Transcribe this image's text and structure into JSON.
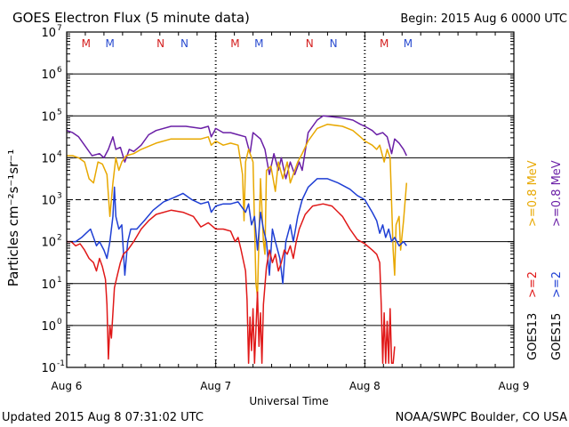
{
  "chart_data": {
    "type": "line",
    "title": "GOES Electron Flux (5 minute data)",
    "begin_label": "Begin: 2015 Aug 6 0000 UTC",
    "xlabel": "Universal Time",
    "ylabel": "Particles cm⁻²s⁻¹sr⁻¹",
    "yscale": "log",
    "ylim_log10": [
      -1,
      7
    ],
    "y_ticks": [
      {
        "exp": -1,
        "label": "10",
        "sup": "-1"
      },
      {
        "exp": 0,
        "label": "10",
        "sup": "0"
      },
      {
        "exp": 1,
        "label": "10",
        "sup": "1"
      },
      {
        "exp": 2,
        "label": "10",
        "sup": "2"
      },
      {
        "exp": 3,
        "label": "10",
        "sup": "3"
      },
      {
        "exp": 4,
        "label": "10",
        "sup": "4"
      },
      {
        "exp": 5,
        "label": "10",
        "sup": "5"
      },
      {
        "exp": 6,
        "label": "10",
        "sup": "6"
      },
      {
        "exp": 7,
        "label": "10",
        "sup": "7"
      }
    ],
    "xlim_days": [
      0,
      3
    ],
    "x_ticks": [
      {
        "day": 0,
        "label": "Aug 6"
      },
      {
        "day": 1,
        "label": "Aug 7"
      },
      {
        "day": 2,
        "label": "Aug 8"
      },
      {
        "day": 3,
        "label": "Aug 9"
      }
    ],
    "solid_gridlines": [
      0,
      1,
      2,
      4,
      5,
      6
    ],
    "dashed_gridline": 3,
    "markers": [
      {
        "day": 0.13,
        "label": "M",
        "color": "#d42020"
      },
      {
        "day": 0.29,
        "label": "M",
        "color": "#2a4cd0"
      },
      {
        "day": 0.63,
        "label": "N",
        "color": "#d42020"
      },
      {
        "day": 0.79,
        "label": "N",
        "color": "#2a4cd0"
      },
      {
        "day": 1.13,
        "label": "M",
        "color": "#d42020"
      },
      {
        "day": 1.29,
        "label": "M",
        "color": "#2a4cd0"
      },
      {
        "day": 1.63,
        "label": "N",
        "color": "#d42020"
      },
      {
        "day": 1.79,
        "label": "N",
        "color": "#2a4cd0"
      },
      {
        "day": 2.13,
        "label": "M",
        "color": "#d42020"
      },
      {
        "day": 2.29,
        "label": "M",
        "color": "#2a4cd0"
      }
    ],
    "series": [
      {
        "name": ">=0.8 MeV GOES15",
        "color": "#6a1fa6",
        "points": [
          [
            0,
            4.65
          ],
          [
            0.04,
            4.6
          ],
          [
            0.08,
            4.5
          ],
          [
            0.12,
            4.3
          ],
          [
            0.17,
            4.05
          ],
          [
            0.22,
            4.1
          ],
          [
            0.25,
            4.0
          ],
          [
            0.28,
            4.2
          ],
          [
            0.31,
            4.5
          ],
          [
            0.33,
            4.2
          ],
          [
            0.36,
            4.25
          ],
          [
            0.39,
            3.9
          ],
          [
            0.42,
            4.2
          ],
          [
            0.45,
            4.15
          ],
          [
            0.5,
            4.3
          ],
          [
            0.55,
            4.55
          ],
          [
            0.6,
            4.65
          ],
          [
            0.7,
            4.75
          ],
          [
            0.8,
            4.75
          ],
          [
            0.9,
            4.7
          ],
          [
            0.95,
            4.75
          ],
          [
            0.97,
            4.5
          ],
          [
            1.0,
            4.7
          ],
          [
            1.05,
            4.6
          ],
          [
            1.1,
            4.6
          ],
          [
            1.15,
            4.55
          ],
          [
            1.2,
            4.5
          ],
          [
            1.23,
            4.1
          ],
          [
            1.25,
            4.6
          ],
          [
            1.3,
            4.45
          ],
          [
            1.33,
            4.2
          ],
          [
            1.36,
            3.6
          ],
          [
            1.39,
            4.1
          ],
          [
            1.42,
            3.7
          ],
          [
            1.44,
            4.0
          ],
          [
            1.47,
            3.5
          ],
          [
            1.5,
            3.9
          ],
          [
            1.53,
            3.6
          ],
          [
            1.56,
            3.9
          ],
          [
            1.58,
            3.7
          ],
          [
            1.62,
            4.6
          ],
          [
            1.68,
            4.9
          ],
          [
            1.72,
            5.0
          ],
          [
            1.78,
            4.98
          ],
          [
            1.85,
            4.95
          ],
          [
            1.92,
            4.9
          ],
          [
            1.97,
            4.8
          ],
          [
            2.0,
            4.75
          ],
          [
            2.05,
            4.65
          ],
          [
            2.08,
            4.55
          ],
          [
            2.12,
            4.6
          ],
          [
            2.15,
            4.5
          ],
          [
            2.18,
            4.1
          ],
          [
            2.2,
            4.45
          ],
          [
            2.23,
            4.35
          ],
          [
            2.26,
            4.2
          ],
          [
            2.28,
            4.05
          ]
        ]
      },
      {
        "name": ">=0.8 MeV GOES13",
        "color": "#e8a800",
        "points": [
          [
            0,
            4.05
          ],
          [
            0.04,
            4.05
          ],
          [
            0.08,
            4.0
          ],
          [
            0.12,
            3.9
          ],
          [
            0.15,
            3.5
          ],
          [
            0.18,
            3.4
          ],
          [
            0.21,
            3.9
          ],
          [
            0.24,
            3.85
          ],
          [
            0.27,
            3.6
          ],
          [
            0.29,
            2.6
          ],
          [
            0.31,
            3.4
          ],
          [
            0.33,
            4.0
          ],
          [
            0.35,
            3.7
          ],
          [
            0.37,
            3.9
          ],
          [
            0.4,
            4.05
          ],
          [
            0.45,
            4.1
          ],
          [
            0.5,
            4.2
          ],
          [
            0.6,
            4.35
          ],
          [
            0.7,
            4.45
          ],
          [
            0.8,
            4.45
          ],
          [
            0.9,
            4.45
          ],
          [
            0.95,
            4.5
          ],
          [
            0.97,
            4.3
          ],
          [
            1.0,
            4.4
          ],
          [
            1.05,
            4.3
          ],
          [
            1.1,
            4.35
          ],
          [
            1.15,
            4.3
          ],
          [
            1.18,
            3.6
          ],
          [
            1.19,
            2.5
          ],
          [
            1.2,
            3.9
          ],
          [
            1.22,
            4.2
          ],
          [
            1.25,
            3.9
          ],
          [
            1.27,
            1.0
          ],
          [
            1.28,
            0.7
          ],
          [
            1.3,
            3.5
          ],
          [
            1.32,
            2.0
          ],
          [
            1.33,
            1.7
          ],
          [
            1.34,
            3.7
          ],
          [
            1.37,
            3.8
          ],
          [
            1.4,
            3.2
          ],
          [
            1.42,
            3.9
          ],
          [
            1.45,
            3.5
          ],
          [
            1.48,
            3.9
          ],
          [
            1.5,
            3.4
          ],
          [
            1.53,
            3.7
          ],
          [
            1.55,
            3.9
          ],
          [
            1.58,
            4.1
          ],
          [
            1.62,
            4.4
          ],
          [
            1.68,
            4.7
          ],
          [
            1.75,
            4.8
          ],
          [
            1.85,
            4.75
          ],
          [
            1.92,
            4.65
          ],
          [
            1.97,
            4.5
          ],
          [
            2.0,
            4.4
          ],
          [
            2.05,
            4.3
          ],
          [
            2.08,
            4.2
          ],
          [
            2.1,
            4.3
          ],
          [
            2.13,
            3.9
          ],
          [
            2.15,
            4.2
          ],
          [
            2.17,
            4.0
          ],
          [
            2.19,
            1.8
          ],
          [
            2.2,
            1.2
          ],
          [
            2.21,
            2.4
          ],
          [
            2.23,
            2.6
          ],
          [
            2.24,
            1.8
          ],
          [
            2.26,
            2.5
          ],
          [
            2.28,
            3.4
          ]
        ]
      },
      {
        "name": ">=2 MeV GOES15",
        "color": "#1f3fd4",
        "points": [
          [
            0,
            2.0
          ],
          [
            0.03,
            2.0
          ],
          [
            0.06,
            2.0
          ],
          [
            0.1,
            2.1
          ],
          [
            0.13,
            2.2
          ],
          [
            0.16,
            2.3
          ],
          [
            0.18,
            2.1
          ],
          [
            0.2,
            1.9
          ],
          [
            0.22,
            2.0
          ],
          [
            0.25,
            1.8
          ],
          [
            0.27,
            1.6
          ],
          [
            0.29,
            2.0
          ],
          [
            0.31,
            2.6
          ],
          [
            0.32,
            3.3
          ],
          [
            0.33,
            2.6
          ],
          [
            0.35,
            2.3
          ],
          [
            0.37,
            2.4
          ],
          [
            0.39,
            1.2
          ],
          [
            0.41,
            2.0
          ],
          [
            0.43,
            2.3
          ],
          [
            0.47,
            2.3
          ],
          [
            0.52,
            2.5
          ],
          [
            0.58,
            2.75
          ],
          [
            0.65,
            2.95
          ],
          [
            0.72,
            3.05
          ],
          [
            0.78,
            3.15
          ],
          [
            0.84,
            3.0
          ],
          [
            0.9,
            2.9
          ],
          [
            0.95,
            2.95
          ],
          [
            0.97,
            2.7
          ],
          [
            1.0,
            2.85
          ],
          [
            1.05,
            2.9
          ],
          [
            1.1,
            2.9
          ],
          [
            1.15,
            2.95
          ],
          [
            1.2,
            2.7
          ],
          [
            1.22,
            2.9
          ],
          [
            1.24,
            2.4
          ],
          [
            1.26,
            2.6
          ],
          [
            1.28,
            1.8
          ],
          [
            1.3,
            2.7
          ],
          [
            1.32,
            2.3
          ],
          [
            1.34,
            2.0
          ],
          [
            1.36,
            1.2
          ],
          [
            1.38,
            2.3
          ],
          [
            1.4,
            2.0
          ],
          [
            1.43,
            1.6
          ],
          [
            1.45,
            1.0
          ],
          [
            1.47,
            2.0
          ],
          [
            1.5,
            2.4
          ],
          [
            1.52,
            2.0
          ],
          [
            1.55,
            2.6
          ],
          [
            1.58,
            3.0
          ],
          [
            1.62,
            3.3
          ],
          [
            1.68,
            3.5
          ],
          [
            1.75,
            3.5
          ],
          [
            1.82,
            3.4
          ],
          [
            1.9,
            3.25
          ],
          [
            1.95,
            3.1
          ],
          [
            2.0,
            3.0
          ],
          [
            2.05,
            2.7
          ],
          [
            2.08,
            2.5
          ],
          [
            2.1,
            2.2
          ],
          [
            2.12,
            2.4
          ],
          [
            2.14,
            2.1
          ],
          [
            2.16,
            2.3
          ],
          [
            2.18,
            2.0
          ],
          [
            2.2,
            2.1
          ],
          [
            2.23,
            1.9
          ],
          [
            2.26,
            2.0
          ],
          [
            2.28,
            1.9
          ]
        ]
      },
      {
        "name": ">=2 MeV GOES13",
        "color": "#e01818",
        "points": [
          [
            0,
            2.0
          ],
          [
            0.03,
            2.0
          ],
          [
            0.06,
            1.9
          ],
          [
            0.09,
            1.95
          ],
          [
            0.12,
            1.8
          ],
          [
            0.15,
            1.6
          ],
          [
            0.18,
            1.5
          ],
          [
            0.2,
            1.3
          ],
          [
            0.22,
            1.6
          ],
          [
            0.24,
            1.4
          ],
          [
            0.26,
            1.1
          ],
          [
            0.27,
            0.5
          ],
          [
            0.28,
            -0.8
          ],
          [
            0.29,
            0.0
          ],
          [
            0.3,
            -0.3
          ],
          [
            0.32,
            0.9
          ],
          [
            0.34,
            1.2
          ],
          [
            0.36,
            1.5
          ],
          [
            0.38,
            1.7
          ],
          [
            0.41,
            1.8
          ],
          [
            0.45,
            2.0
          ],
          [
            0.5,
            2.3
          ],
          [
            0.55,
            2.5
          ],
          [
            0.6,
            2.65
          ],
          [
            0.7,
            2.75
          ],
          [
            0.78,
            2.7
          ],
          [
            0.85,
            2.6
          ],
          [
            0.9,
            2.35
          ],
          [
            0.95,
            2.45
          ],
          [
            1.0,
            2.3
          ],
          [
            1.05,
            2.3
          ],
          [
            1.1,
            2.25
          ],
          [
            1.13,
            2.0
          ],
          [
            1.15,
            2.1
          ],
          [
            1.17,
            1.8
          ],
          [
            1.2,
            1.3
          ],
          [
            1.21,
            0.6
          ],
          [
            1.22,
            -0.9
          ],
          [
            1.23,
            0.2
          ],
          [
            1.24,
            -0.6
          ],
          [
            1.25,
            0.4
          ],
          [
            1.26,
            -0.9
          ],
          [
            1.28,
            0.8
          ],
          [
            1.29,
            -0.5
          ],
          [
            1.3,
            0.3
          ],
          [
            1.31,
            -0.9
          ],
          [
            1.32,
            0.5
          ],
          [
            1.34,
            1.4
          ],
          [
            1.36,
            1.8
          ],
          [
            1.38,
            1.5
          ],
          [
            1.4,
            1.7
          ],
          [
            1.42,
            1.3
          ],
          [
            1.44,
            1.5
          ],
          [
            1.46,
            1.8
          ],
          [
            1.48,
            1.7
          ],
          [
            1.5,
            1.9
          ],
          [
            1.52,
            1.6
          ],
          [
            1.54,
            2.0
          ],
          [
            1.56,
            2.3
          ],
          [
            1.6,
            2.65
          ],
          [
            1.65,
            2.85
          ],
          [
            1.72,
            2.9
          ],
          [
            1.78,
            2.85
          ],
          [
            1.85,
            2.6
          ],
          [
            1.9,
            2.3
          ],
          [
            1.95,
            2.05
          ],
          [
            2.0,
            1.95
          ],
          [
            2.05,
            1.8
          ],
          [
            2.08,
            1.7
          ],
          [
            2.1,
            1.5
          ],
          [
            2.11,
            0.5
          ],
          [
            2.12,
            -0.9
          ],
          [
            2.13,
            0.3
          ],
          [
            2.14,
            -0.9
          ],
          [
            2.15,
            0.1
          ],
          [
            2.16,
            -0.9
          ],
          [
            2.17,
            0.4
          ],
          [
            2.18,
            -0.9
          ],
          [
            2.19,
            -0.9
          ],
          [
            2.2,
            -0.5
          ]
        ]
      }
    ],
    "right_labels": [
      {
        "text": "GOES13",
        "color": "#000000"
      },
      {
        "text": ">=2",
        "color": "#e01818"
      },
      {
        "text": ">=0.8 MeV",
        "color": "#e8a800"
      },
      {
        "text": "GOES15",
        "color": "#000000"
      },
      {
        "text": ">=2",
        "color": "#1f3fd4"
      },
      {
        "text": ">=0.8 MeV",
        "color": "#6a1fa6"
      }
    ]
  },
  "footer": {
    "updated": "Updated 2015 Aug  8 07:31:02 UTC",
    "source": "NOAA/SWPC Boulder, CO USA"
  }
}
